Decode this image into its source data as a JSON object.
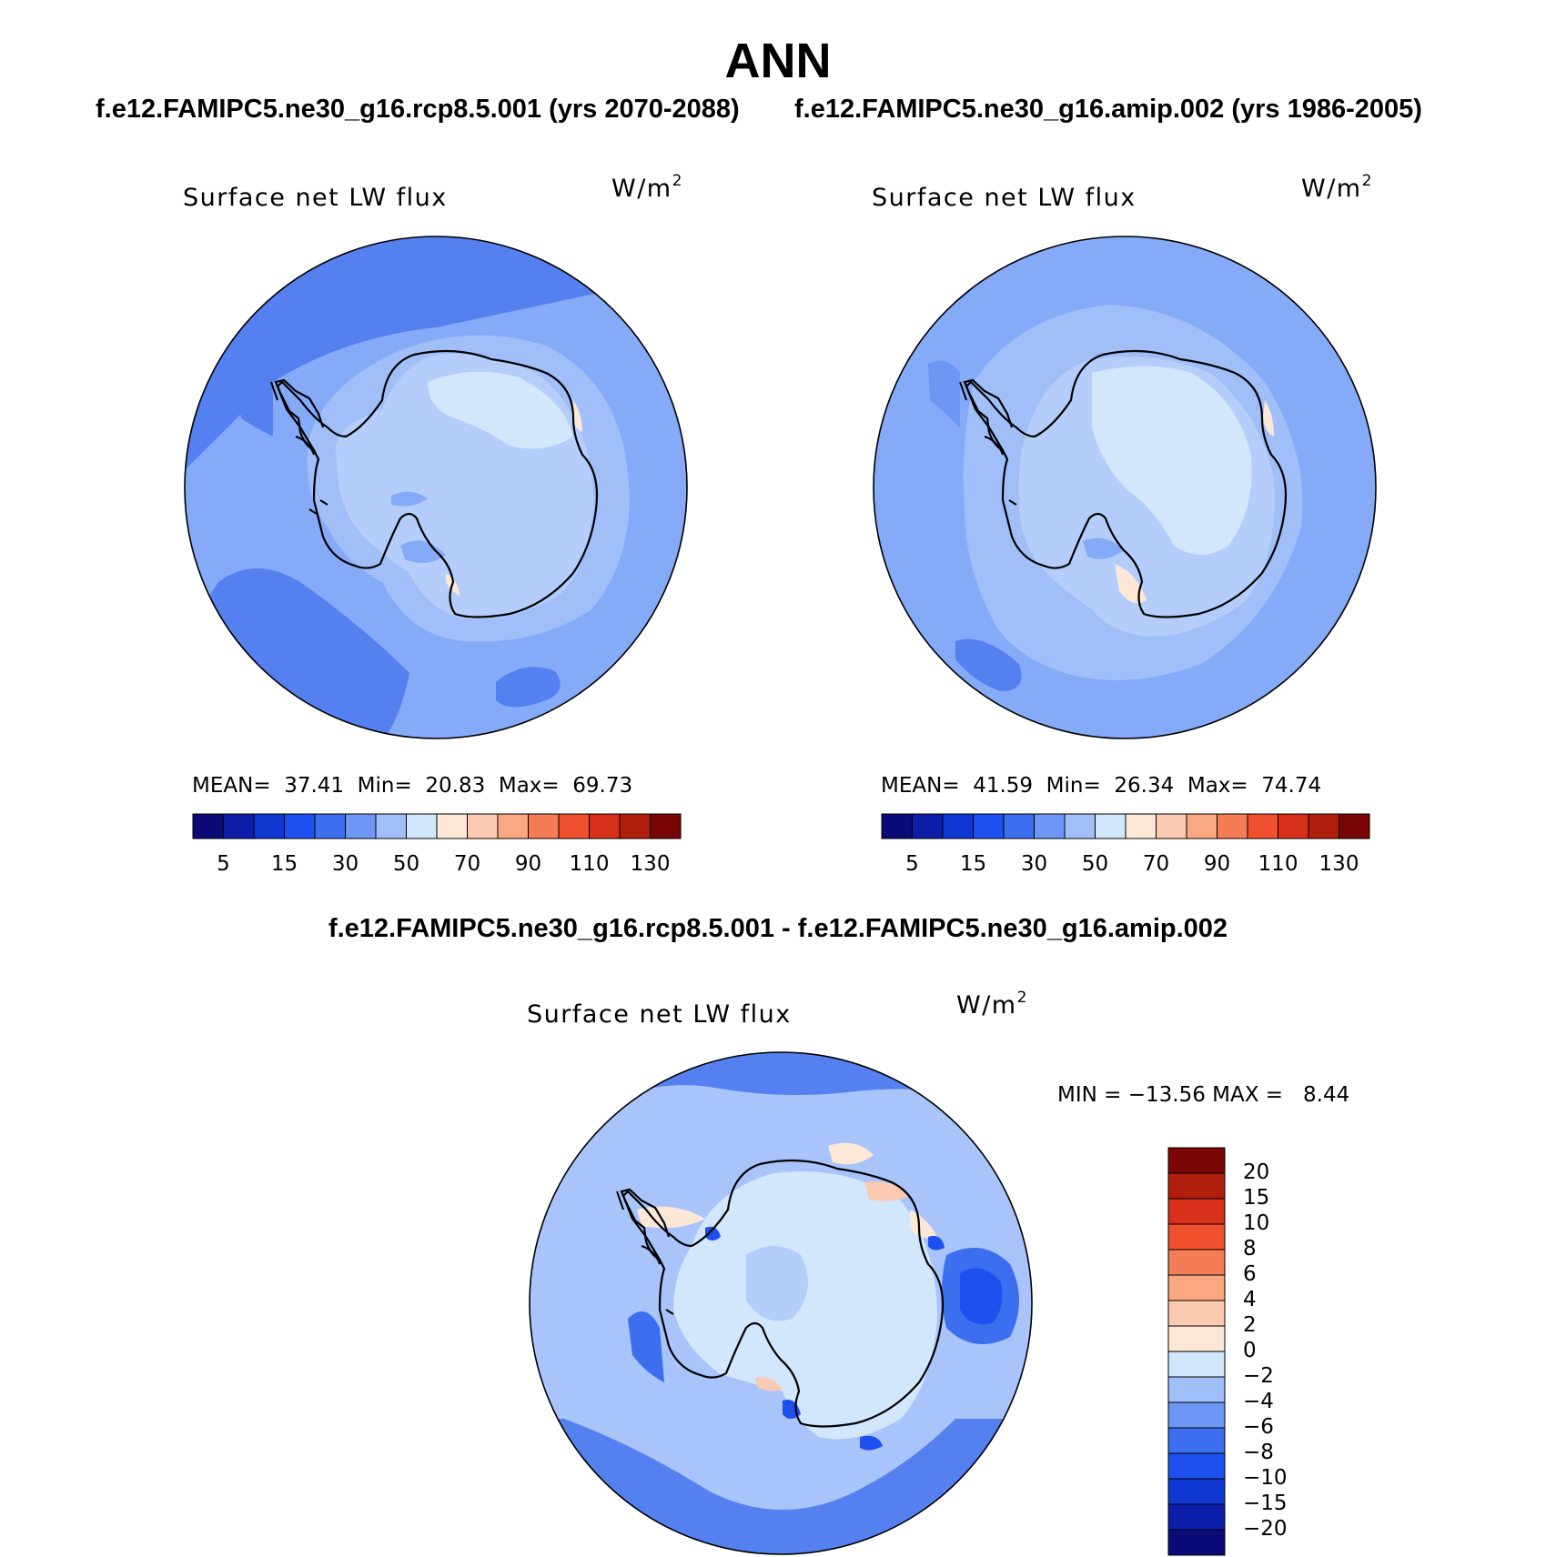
{
  "title": "ANN",
  "case_titles": {
    "left": "f.e12.FAMIPC5.ne30_g16.rcp8.5.001 (yrs 2070-2088)",
    "right": "f.e12.FAMIPC5.ne30_g16.amip.002 (yrs 1986-2005)",
    "diff": "f.e12.FAMIPC5.ne30_g16.rcp8.5.001 - f.e12.FAMIPC5.ne30_g16.amip.002"
  },
  "panels": [
    {
      "variable": "Surface net LW flux",
      "units": "W/m",
      "units_sup": "2",
      "stats_line": "MEAN=  37.41  Min=  20.83  Max=  69.73",
      "stats": {
        "mean": 37.41,
        "min": 20.83,
        "max": 69.73
      }
    },
    {
      "variable": "Surface net LW flux",
      "units": "W/m",
      "units_sup": "2",
      "stats_line": "MEAN=  41.59  Min=  26.34  Max=  74.74",
      "stats": {
        "mean": 41.59,
        "min": 26.34,
        "max": 74.74
      }
    },
    {
      "variable": "Surface net LW flux",
      "units": "W/m",
      "units_sup": "2",
      "stats_line": "MIN = −13.56 MAX =   8.44",
      "stats": {
        "min": -13.56,
        "max": 8.44
      }
    }
  ],
  "colorbar_abs": {
    "tick_labels": [
      "5",
      "15",
      "30",
      "50",
      "70",
      "90",
      "110",
      "130"
    ],
    "colors": [
      "#0a0a78",
      "#0c1eaa",
      "#0f37d2",
      "#1e50f0",
      "#3c6ef0",
      "#6e96f5",
      "#a0bef8",
      "#d2e6fc",
      "#fde8d8",
      "#fccab0",
      "#f9a882",
      "#f57d55",
      "#f0502d",
      "#d8301a",
      "#b01e0e",
      "#7a0505"
    ]
  },
  "colorbar_diff": {
    "tick_labels": [
      "20",
      "15",
      "10",
      "8",
      "6",
      "4",
      "2",
      "0",
      "−2",
      "−4",
      "−6",
      "−8",
      "−10",
      "−15",
      "−20"
    ],
    "colors_top_to_bottom": [
      "#7a0505",
      "#b01e0e",
      "#d8301a",
      "#f0502d",
      "#f57d55",
      "#f9a882",
      "#fccab0",
      "#fde8d8",
      "#d2e6fc",
      "#a0bef8",
      "#6e96f5",
      "#3c6ef0",
      "#1e50f0",
      "#0f37d2",
      "#0c1eaa",
      "#0a0a78"
    ]
  },
  "colors": {
    "ocean_abs": "#84aaf8",
    "ocean_dark": "#5580f0",
    "land_abs": "#b4cdfa",
    "land_light": "#d2e6fc",
    "diff_bg": "#a8c4fa",
    "diff_land": "#d2e6fc"
  }
}
